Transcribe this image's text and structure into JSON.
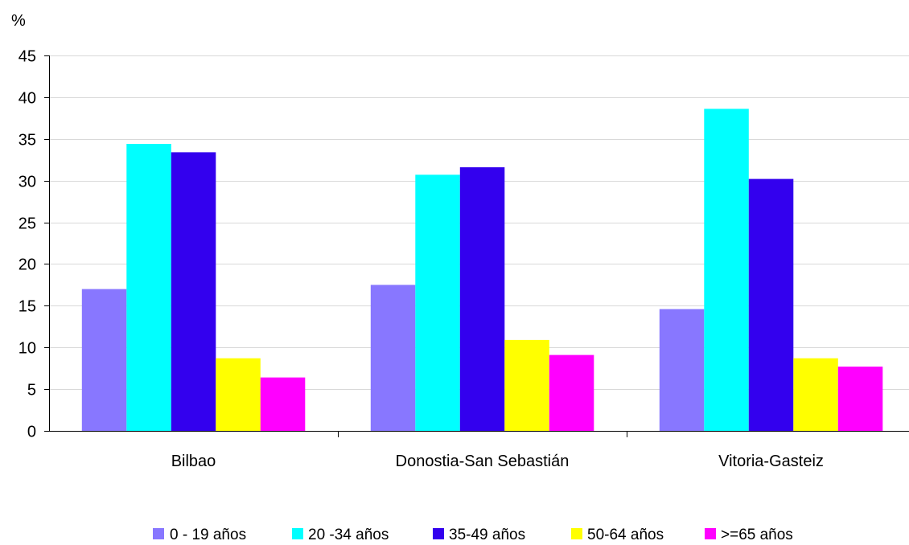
{
  "chart_data": {
    "type": "bar",
    "ylabel": "%",
    "ylim": [
      0,
      45
    ],
    "yticks": [
      0,
      5,
      10,
      15,
      20,
      25,
      30,
      35,
      40,
      45
    ],
    "grid": true,
    "legend_position": "bottom",
    "categories": [
      "Bilbao",
      "Donostia-San Sebastián",
      "Vitoria-Gasteiz"
    ],
    "series": [
      {
        "name": "0 - 19 años",
        "color": "#8877ff",
        "values": [
          17.0,
          17.5,
          14.6
        ]
      },
      {
        "name": "20 -34 años",
        "color": "#00ffff",
        "values": [
          34.4,
          30.7,
          38.6
        ]
      },
      {
        "name": "35-49 años",
        "color": "#3300ee",
        "values": [
          33.4,
          31.6,
          30.2
        ]
      },
      {
        "name": "50-64 años",
        "color": "#ffff00",
        "values": [
          8.7,
          10.9,
          8.7
        ]
      },
      {
        "name": ">=65 años",
        "color": "#ff00ff",
        "values": [
          6.4,
          9.1,
          7.7
        ]
      }
    ]
  }
}
